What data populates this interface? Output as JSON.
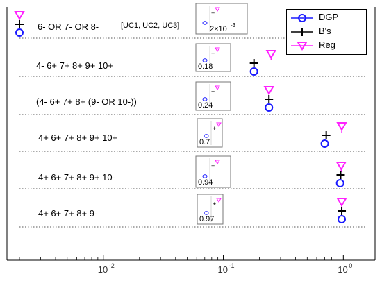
{
  "chart_data": {
    "type": "scatter",
    "x_scale": "log",
    "xlim": [
      0.002,
      1.2
    ],
    "x_tick_values": [
      0.01,
      0.1,
      1
    ],
    "x_tick_labels": [
      {
        "base": "10",
        "exp": "-2"
      },
      {
        "base": "10",
        "exp": "-1"
      },
      {
        "base": "10",
        "exp": "0"
      }
    ],
    "grid": false,
    "legend_position": "top-right",
    "colors": {
      "DGP": "#1a1aff",
      "B's": "#000000",
      "Reg": "#ff22ff"
    },
    "legend": [
      {
        "name": "DGP",
        "marker": "circle",
        "color": "#1a1aff"
      },
      {
        "name": "B's",
        "marker": "plus",
        "color": "#000000"
      },
      {
        "name": "Reg",
        "marker": "triangle-down",
        "color": "#ff22ff"
      }
    ],
    "rows": [
      {
        "label": "6- OR 7- OR 8-",
        "note": "[UC1, UC2, UC3]",
        "values": {
          "DGP": 0.002,
          "B's": 0.002,
          "Reg": 0.002
        },
        "inset_label": "2×10",
        "inset_exp": "-3"
      },
      {
        "label": "4- 6+ 7+ 8+ 9+ 10+",
        "note": "",
        "values": {
          "DGP": 0.18,
          "B's": 0.18,
          "Reg": 0.25
        },
        "inset_label": "0.18",
        "inset_exp": ""
      },
      {
        "label": "(4- 6+ 7+ 8+ (9- OR 10-))",
        "note": "",
        "values": {
          "DGP": 0.24,
          "B's": 0.24,
          "Reg": 0.24
        },
        "inset_label": "0.24",
        "inset_exp": ""
      },
      {
        "label": "4+ 6+ 7+ 8+ 9+ 10+",
        "note": "",
        "values": {
          "DGP": 0.7,
          "B's": 0.72,
          "Reg": 0.97
        },
        "inset_label": "0.7",
        "inset_exp": ""
      },
      {
        "label": "4+ 6+ 7+ 8+ 9+ 10-",
        "note": "",
        "values": {
          "DGP": 0.94,
          "B's": 0.95,
          "Reg": 0.96
        },
        "inset_label": "0.94",
        "inset_exp": ""
      },
      {
        "label": "4+ 6+ 7+ 8+ 9-",
        "note": "",
        "values": {
          "DGP": 0.97,
          "B's": 0.97,
          "Reg": 0.97
        },
        "inset_label": "0.97",
        "inset_exp": ""
      }
    ]
  }
}
